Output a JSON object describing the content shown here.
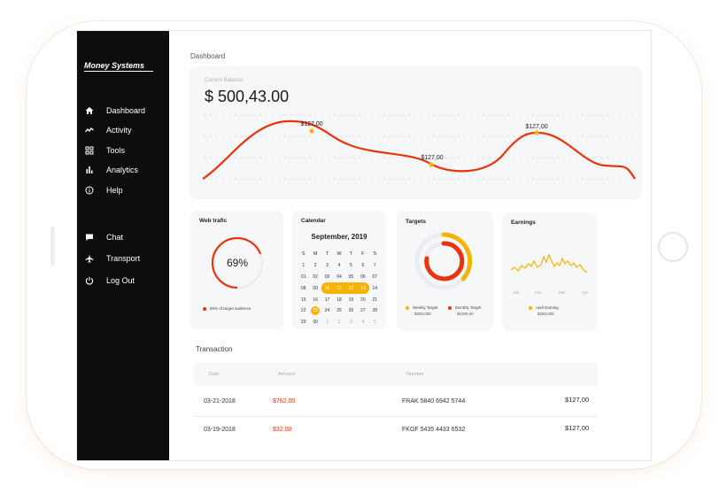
{
  "sidebar": {
    "brand": "Money Systems",
    "items": [
      {
        "label": "Dashboard",
        "icon": "home-icon"
      },
      {
        "label": "Activity",
        "icon": "activity-icon"
      },
      {
        "label": "Tools",
        "icon": "grid-icon"
      },
      {
        "label": "Analytics",
        "icon": "bar-chart-icon"
      },
      {
        "label": "Help",
        "icon": "info-icon"
      },
      {
        "label": "Chat",
        "icon": "chat-icon"
      },
      {
        "label": "Transport",
        "icon": "plane-icon"
      },
      {
        "label": "Log Out",
        "icon": "power-icon"
      }
    ]
  },
  "main": {
    "page_title": "Dashboard",
    "balance": {
      "label": "Current Balance",
      "value": "$ 500,43.00",
      "markers": [
        "$127,00",
        "$127,00",
        "$127,00"
      ]
    },
    "web_traffic": {
      "title": "Web trafic",
      "percent_label": "69%",
      "percent": 69,
      "legend": "69% of target audience"
    },
    "calendar": {
      "title": "Calendar",
      "month": "September, 2019",
      "weekdays": [
        "S",
        "M",
        "T",
        "W",
        "T",
        "F",
        "S"
      ],
      "weeks": [
        [
          "1",
          "2",
          "3",
          "4",
          "5",
          "6",
          "7"
        ],
        [
          "01",
          "02",
          "03",
          "04",
          "05",
          "06",
          "07"
        ],
        [
          "08",
          "09",
          "10",
          "11",
          "12",
          "13",
          "14"
        ],
        [
          "15",
          "16",
          "17",
          "18",
          "19",
          "20",
          "21"
        ],
        [
          "22",
          "23",
          "24",
          "25",
          "26",
          "27",
          "28"
        ],
        [
          "29",
          "30",
          "1",
          "2",
          "3",
          "4",
          "5"
        ]
      ],
      "highlighted_range": [
        "10",
        "13"
      ],
      "today": "23"
    },
    "targets": {
      "title": "Targets",
      "weekly_label": "Weekly Target",
      "weekly_value": "$250,000",
      "monthly_label": "Monthly Target",
      "monthly_value": "$1200,00"
    },
    "earnings": {
      "title": "Earnings",
      "months": [
        "Jan",
        "Feb",
        "Mar",
        "Apr"
      ],
      "legend_label": "April Earning",
      "legend_value": "$250,000"
    },
    "transactions": {
      "title": "Transaction",
      "columns": [
        "Date",
        "Amount",
        "Number"
      ],
      "rows": [
        {
          "date": "03-21-2018",
          "amount": "$762.00",
          "number": "FRAK 5840 6942 5744",
          "total": "$127,00"
        },
        {
          "date": "03-19-2018",
          "amount": "$32.00",
          "number": "FKGF 5435 4433 6532",
          "total": "$127,00"
        }
      ]
    }
  },
  "colors": {
    "accent_red": "#e8340c",
    "accent_yellow": "#f6b400",
    "sidebar_bg": "#0d0d0d",
    "card_bg": "#f6f7f9"
  }
}
